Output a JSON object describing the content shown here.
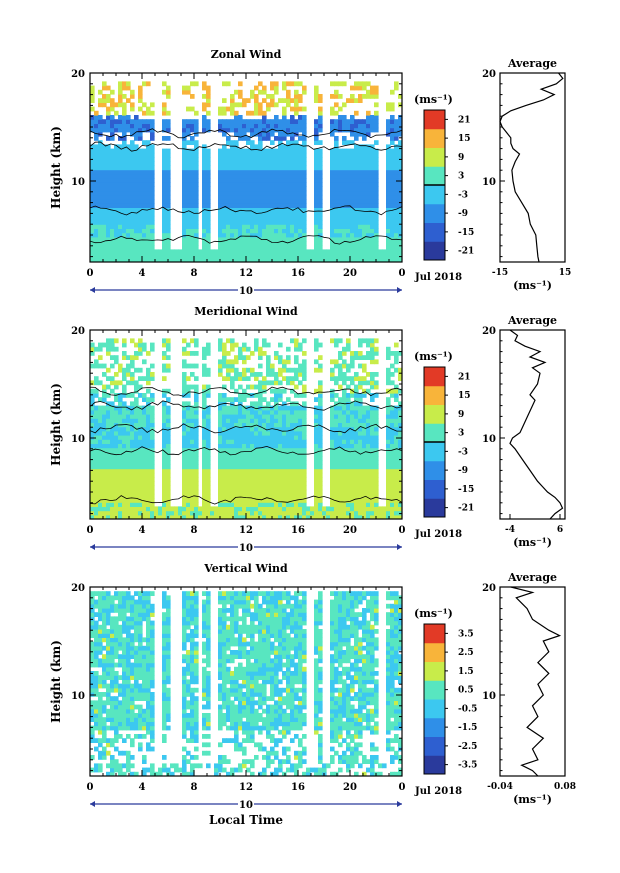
{
  "chart_data": [
    {
      "type": "heatmap",
      "title": "Zonal Wind",
      "ylabel": "Height (km)",
      "xlabel": "",
      "xlim": [
        0,
        24
      ],
      "ylim": [
        2.5,
        20
      ],
      "x_ticks": [
        "0",
        "4",
        "8",
        "12",
        "16",
        "20",
        "0"
      ],
      "x_tick_values": [
        0,
        4,
        8,
        12,
        16,
        20,
        24
      ],
      "y_ticks": [
        "20",
        "10"
      ],
      "y_tick_values": [
        20,
        10
      ],
      "day_label": "10",
      "date_label": "Jul 2018",
      "colorbar": {
        "unit": "(ms⁻¹)",
        "ticks": [
          "21",
          "15",
          "9",
          "3",
          "-3",
          "-9",
          "-15",
          "-21"
        ],
        "range": [
          -24,
          24
        ]
      },
      "profile": {
        "title": "Average",
        "x_ticks": [
          "-15",
          "15"
        ],
        "x_tick_values": [
          -15,
          15
        ],
        "xlim": [
          -15,
          15
        ],
        "xlabel": "(ms⁻¹)",
        "y_ticks": [
          "20",
          "10"
        ],
        "height": [
          2.5,
          3,
          4,
          5,
          6,
          7,
          8,
          9,
          10,
          11,
          11.8,
          12.5,
          13,
          13.5,
          14,
          14.5,
          15,
          15.5,
          16,
          16.5,
          17,
          17.5,
          18,
          18.5,
          19,
          19.5,
          20
        ],
        "value": [
          3,
          2.5,
          2,
          1.5,
          -1,
          -2,
          -5,
          -8,
          -9,
          -9.5,
          -8,
          -6,
          -9,
          -10,
          -10,
          -12,
          -14,
          -15,
          -14,
          -10,
          -3,
          5,
          10,
          4,
          11,
          14,
          12
        ]
      }
    },
    {
      "type": "heatmap",
      "title": "Meridional Wind",
      "ylabel": "Height (km)",
      "xlabel": "",
      "xlim": [
        0,
        24
      ],
      "ylim": [
        2.5,
        20
      ],
      "x_ticks": [
        "0",
        "4",
        "8",
        "12",
        "16",
        "20",
        "0"
      ],
      "x_tick_values": [
        0,
        4,
        8,
        12,
        16,
        20,
        24
      ],
      "y_ticks": [
        "20",
        "10"
      ],
      "y_tick_values": [
        20,
        10
      ],
      "day_label": "10",
      "date_label": "Jul 2018",
      "colorbar": {
        "unit": "(ms⁻¹)",
        "ticks": [
          "21",
          "15",
          "9",
          "3",
          "-3",
          "-9",
          "-15",
          "-21"
        ],
        "range": [
          -24,
          24
        ]
      },
      "profile": {
        "title": "Average",
        "x_ticks": [
          "-4",
          "6"
        ],
        "x_tick_values": [
          -4,
          6
        ],
        "xlim": [
          -6,
          7
        ],
        "xlabel": "(ms⁻¹)",
        "y_ticks": [
          "20",
          "10"
        ],
        "height": [
          2.5,
          3,
          3.5,
          4,
          4.5,
          5,
          5.5,
          6,
          7,
          8,
          9,
          9.5,
          10,
          10.5,
          11,
          12,
          13,
          13.5,
          14,
          15,
          16,
          16.5,
          17,
          17.5,
          18,
          18.5,
          19,
          19.5,
          20
        ],
        "value": [
          4,
          5,
          6.5,
          6,
          5,
          3.5,
          2.5,
          1.5,
          0,
          -1.5,
          -3,
          -4,
          -3.5,
          -2,
          -1.5,
          -0.5,
          0.5,
          1,
          0,
          1.5,
          2,
          0.5,
          3,
          0,
          2,
          -1,
          -3,
          -2.5,
          -4
        ]
      }
    },
    {
      "type": "heatmap",
      "title": "Vertical Wind",
      "ylabel": "Height (km)",
      "xlabel": "Local Time",
      "xlim": [
        0,
        24
      ],
      "ylim": [
        2.5,
        20
      ],
      "x_ticks": [
        "0",
        "4",
        "8",
        "12",
        "16",
        "20",
        "0"
      ],
      "x_tick_values": [
        0,
        4,
        8,
        12,
        16,
        20,
        24
      ],
      "y_ticks": [
        "20",
        "10"
      ],
      "y_tick_values": [
        20,
        10
      ],
      "day_label": "10",
      "date_label": "Jul 2018",
      "colorbar": {
        "unit": "(ms⁻¹)",
        "ticks": [
          "3.5",
          "2.5",
          "1.5",
          "0.5",
          "-0.5",
          "-1.5",
          "-2.5",
          "-3.5"
        ],
        "range": [
          -4,
          4
        ]
      },
      "profile": {
        "title": "Average",
        "x_ticks": [
          "-0.04",
          "0.08"
        ],
        "x_tick_values": [
          -0.04,
          0.08
        ],
        "xlim": [
          -0.04,
          0.08
        ],
        "xlabel": "(ms⁻¹)",
        "y_ticks": [
          "20",
          "10"
        ],
        "height": [
          2.5,
          3,
          3.5,
          4,
          5,
          6,
          7,
          8,
          9,
          10,
          11,
          12,
          13,
          14,
          15,
          15.5,
          16,
          17,
          18,
          18.5,
          19,
          19.5,
          20
        ],
        "value": [
          0.03,
          0.02,
          0.0,
          0.03,
          0.02,
          0.04,
          0.01,
          0.03,
          0.02,
          0.04,
          0.03,
          0.05,
          0.03,
          0.05,
          0.04,
          0.07,
          0.05,
          0.02,
          0.01,
          0.0,
          -0.01,
          0.02,
          -0.02
        ]
      }
    }
  ]
}
